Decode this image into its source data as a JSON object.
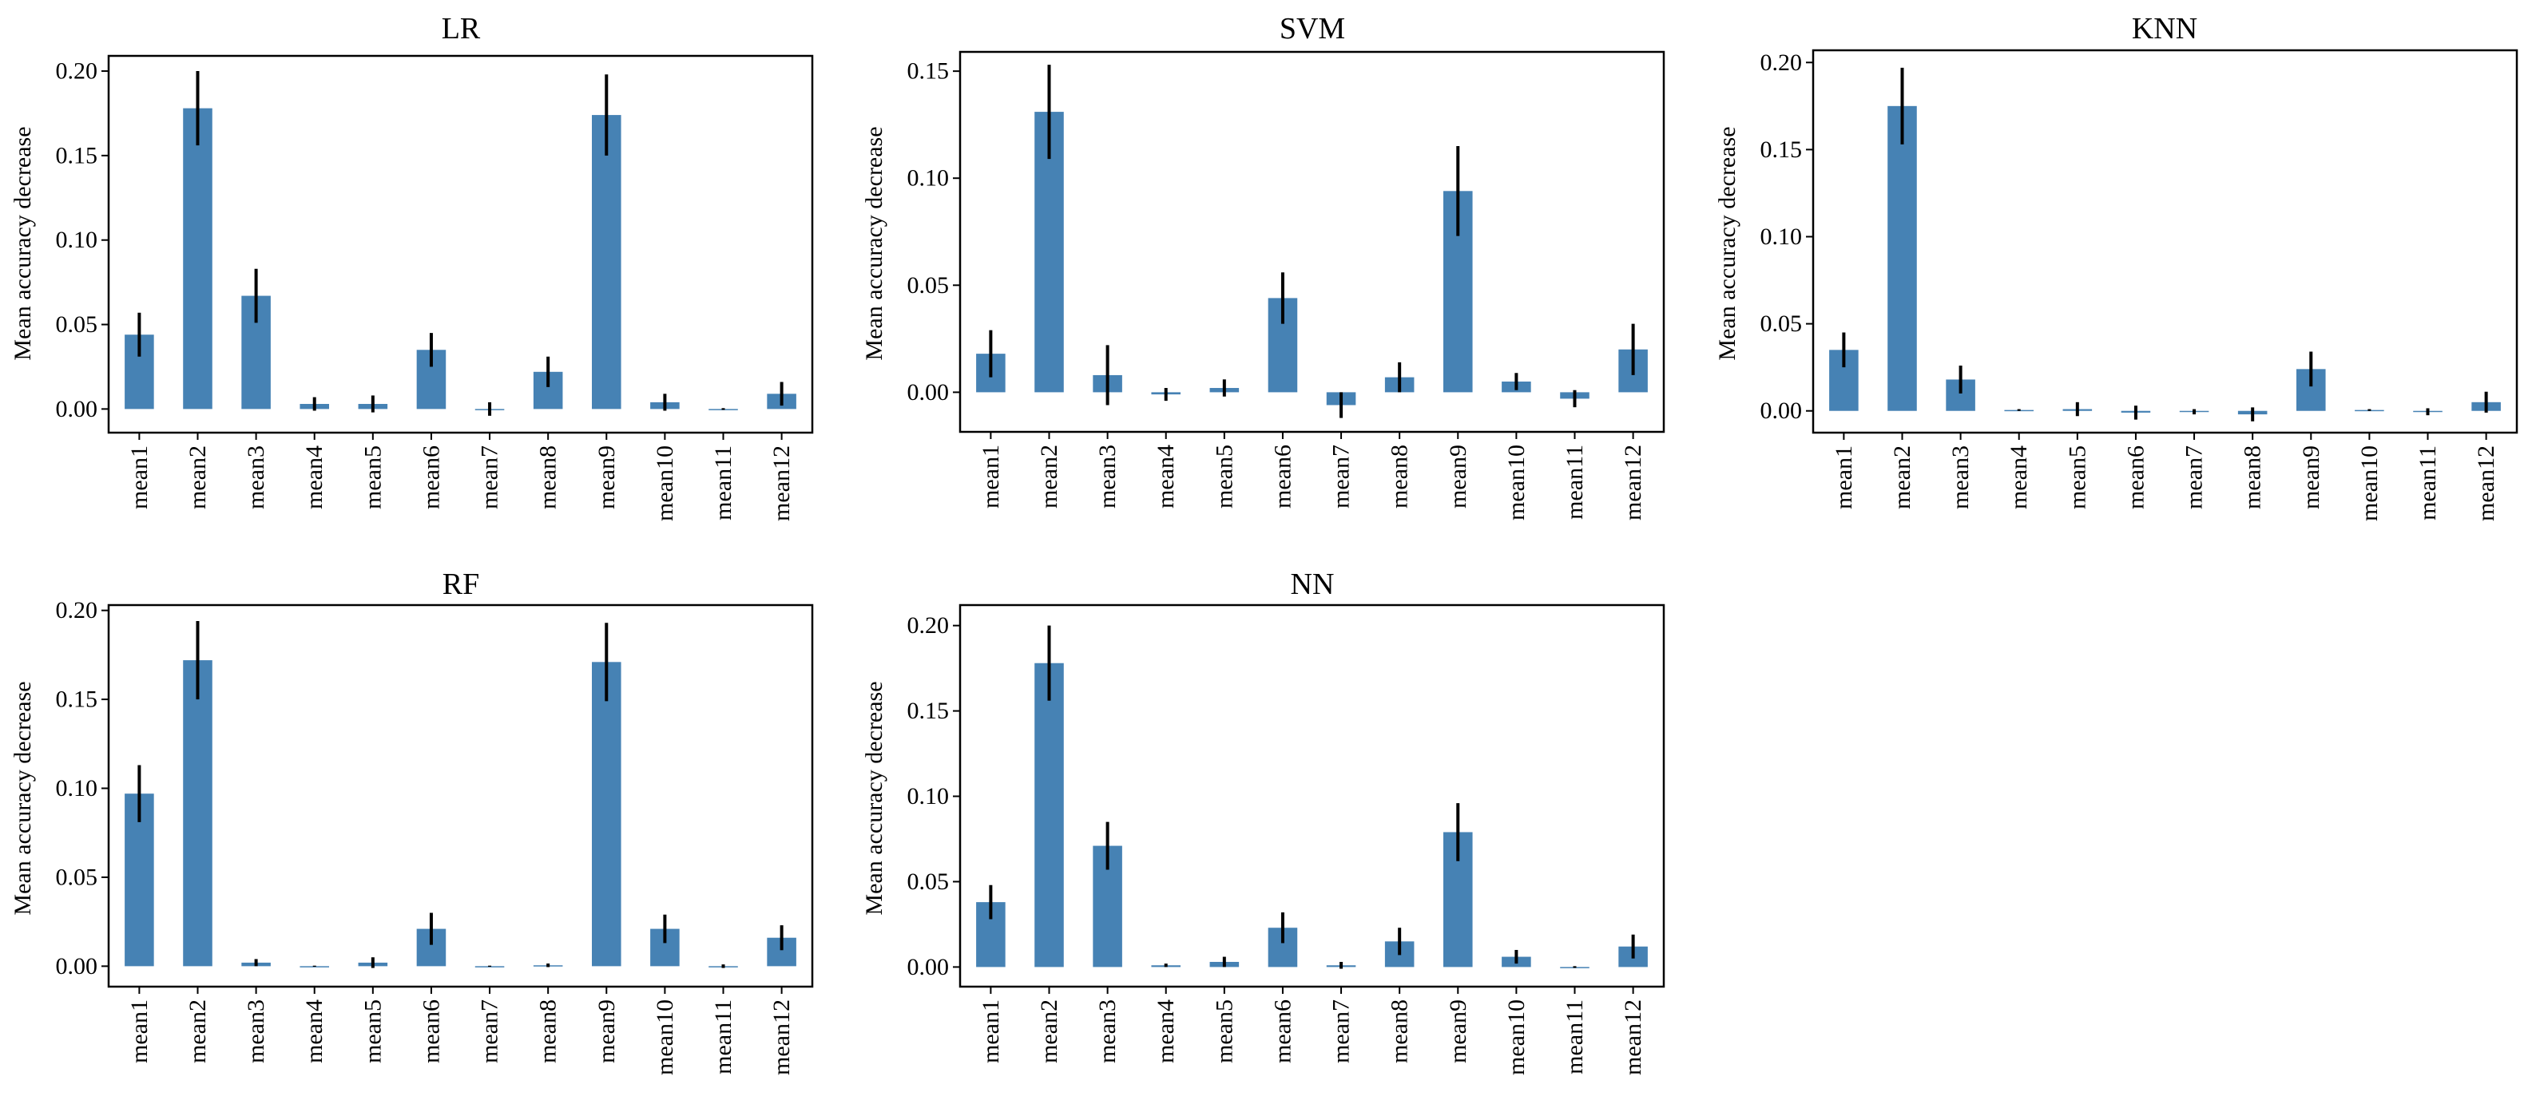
{
  "figure": {
    "bar_color": "#4682b4",
    "error_color": "#000000"
  },
  "chart_data": [
    {
      "type": "bar",
      "title": "LR",
      "xlabel": "",
      "ylabel": "Mean accuracy decrease",
      "categories": [
        "mean1",
        "mean2",
        "mean3",
        "mean4",
        "mean5",
        "mean6",
        "mean7",
        "mean8",
        "mean9",
        "mean10",
        "mean11",
        "mean12"
      ],
      "values": [
        0.044,
        0.178,
        0.067,
        0.003,
        0.003,
        0.035,
        0.0,
        0.022,
        0.174,
        0.004,
        0.0,
        0.009
      ],
      "errors": [
        0.013,
        0.022,
        0.016,
        0.004,
        0.005,
        0.01,
        0.004,
        0.009,
        0.024,
        0.005,
        0.0005,
        0.007
      ],
      "ylim": [
        -0.014,
        0.209
      ],
      "yticks": [
        0.0,
        0.05,
        0.1,
        0.15,
        0.2
      ],
      "ytick_labels": [
        "0.00",
        "0.05",
        "0.10",
        "0.15",
        "0.20"
      ]
    },
    {
      "type": "bar",
      "title": "SVM",
      "xlabel": "",
      "ylabel": "Mean accuracy decrease",
      "categories": [
        "mean1",
        "mean2",
        "mean3",
        "mean4",
        "mean5",
        "mean6",
        "mean7",
        "mean8",
        "mean9",
        "mean10",
        "mean11",
        "mean12"
      ],
      "values": [
        0.018,
        0.131,
        0.008,
        -0.001,
        0.002,
        0.044,
        -0.006,
        0.007,
        0.094,
        0.005,
        -0.003,
        0.02
      ],
      "errors": [
        0.011,
        0.022,
        0.014,
        0.003,
        0.004,
        0.012,
        0.006,
        0.007,
        0.021,
        0.004,
        0.004,
        0.012
      ],
      "ylim": [
        -0.0185,
        0.159
      ],
      "yticks": [
        0.0,
        0.05,
        0.1,
        0.15
      ],
      "ytick_labels": [
        "0.00",
        "0.05",
        "0.10",
        "0.15"
      ]
    },
    {
      "type": "bar",
      "title": "KNN",
      "xlabel": "",
      "ylabel": "Mean accuracy decrease",
      "categories": [
        "mean1",
        "mean2",
        "mean3",
        "mean4",
        "mean5",
        "mean6",
        "mean7",
        "mean8",
        "mean9",
        "mean10",
        "mean11",
        "mean12"
      ],
      "values": [
        0.035,
        0.175,
        0.018,
        0.0005,
        0.001,
        -0.001,
        -0.0005,
        -0.002,
        0.024,
        0.0005,
        -0.0005,
        0.005
      ],
      "errors": [
        0.01,
        0.022,
        0.008,
        0.0005,
        0.004,
        0.004,
        0.0015,
        0.004,
        0.01,
        0.0005,
        0.002,
        0.006
      ],
      "ylim": [
        -0.0125,
        0.207
      ],
      "yticks": [
        0.0,
        0.05,
        0.1,
        0.15,
        0.2
      ],
      "ytick_labels": [
        "0.00",
        "0.05",
        "0.10",
        "0.15",
        "0.20"
      ]
    },
    {
      "type": "bar",
      "title": "RF",
      "xlabel": "",
      "ylabel": "Mean accuracy decrease",
      "categories": [
        "mean1",
        "mean2",
        "mean3",
        "mean4",
        "mean5",
        "mean6",
        "mean7",
        "mean8",
        "mean9",
        "mean10",
        "mean11",
        "mean12"
      ],
      "values": [
        0.097,
        0.172,
        0.002,
        0.0,
        0.002,
        0.021,
        0.0,
        0.0005,
        0.171,
        0.021,
        0.0,
        0.016
      ],
      "errors": [
        0.016,
        0.022,
        0.002,
        0.0003,
        0.003,
        0.009,
        0.0003,
        0.001,
        0.022,
        0.008,
        0.001,
        0.007
      ],
      "ylim": [
        -0.0115,
        0.203
      ],
      "yticks": [
        0.0,
        0.05,
        0.1,
        0.15,
        0.2
      ],
      "ytick_labels": [
        "0.00",
        "0.05",
        "0.10",
        "0.15",
        "0.20"
      ]
    },
    {
      "type": "bar",
      "title": "NN",
      "xlabel": "",
      "ylabel": "Mean accuracy decrease",
      "categories": [
        "mean1",
        "mean2",
        "mean3",
        "mean4",
        "mean5",
        "mean6",
        "mean7",
        "mean8",
        "mean9",
        "mean10",
        "mean11",
        "mean12"
      ],
      "values": [
        0.038,
        0.178,
        0.071,
        0.001,
        0.003,
        0.023,
        0.001,
        0.015,
        0.079,
        0.006,
        0.0,
        0.012
      ],
      "errors": [
        0.01,
        0.022,
        0.014,
        0.001,
        0.003,
        0.009,
        0.002,
        0.008,
        0.017,
        0.004,
        0.0005,
        0.007
      ],
      "ylim": [
        -0.0115,
        0.212
      ],
      "yticks": [
        0.0,
        0.05,
        0.1,
        0.15,
        0.2
      ],
      "ytick_labels": [
        "0.00",
        "0.05",
        "0.10",
        "0.15",
        "0.20"
      ]
    }
  ]
}
